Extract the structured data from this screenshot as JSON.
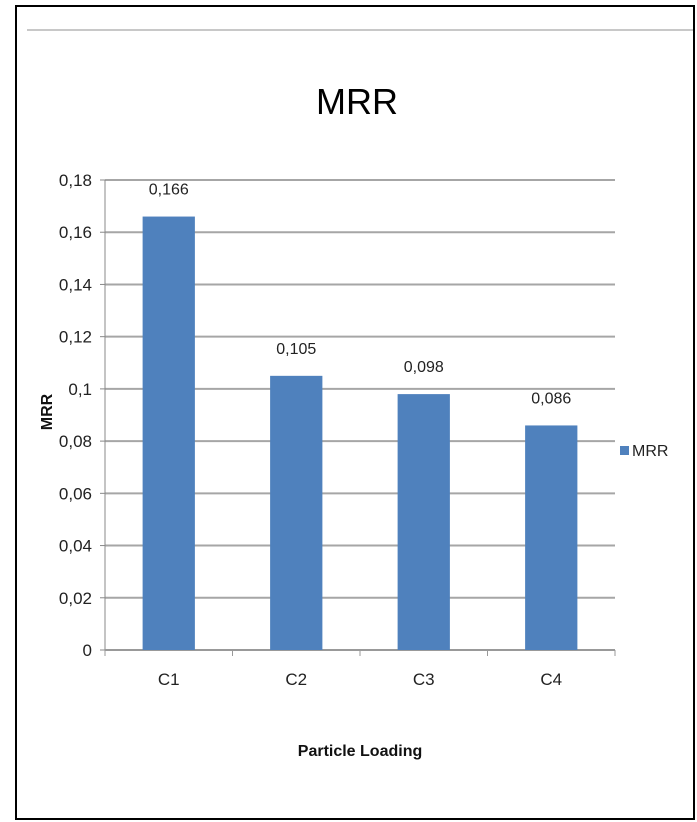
{
  "chart_data": {
    "type": "bar",
    "title": "MRR",
    "xlabel": "Particle Loading",
    "ylabel": "MRR",
    "categories": [
      "C1",
      "C2",
      "C3",
      "C4"
    ],
    "series": [
      {
        "name": "MRR",
        "values": [
          0.166,
          0.105,
          0.098,
          0.086
        ],
        "labels": [
          "0,166",
          "0,105",
          "0,098",
          "0,086"
        ]
      }
    ],
    "ylim": [
      0,
      0.18
    ],
    "yticks": [
      0,
      0.02,
      0.04,
      0.06,
      0.08,
      0.1,
      0.12,
      0.14,
      0.16,
      0.18
    ],
    "ytick_labels": [
      "0",
      "0,02",
      "0,04",
      "0,06",
      "0,08",
      "0,1",
      "0,12",
      "0,14",
      "0,16",
      "0,18"
    ],
    "grid": true,
    "legend_position": "right",
    "bar_color": "#4f81bd",
    "grid_color": "#a6a6a6"
  }
}
